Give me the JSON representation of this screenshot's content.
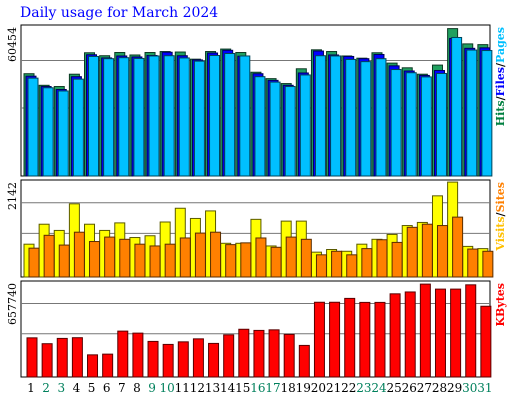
{
  "title": "Daily usage for March 2024",
  "chart_data": [
    {
      "type": "bar",
      "panel": "hits-files-pages",
      "categories": [
        "1",
        "2",
        "3",
        "4",
        "5",
        "6",
        "7",
        "8",
        "9",
        "10",
        "11",
        "12",
        "13",
        "14",
        "15",
        "16",
        "17",
        "18",
        "19",
        "20",
        "21",
        "22",
        "23",
        "24",
        "25",
        "26",
        "27",
        "28",
        "29",
        "30",
        "31"
      ],
      "weekend_days": [
        "2",
        "3",
        "9",
        "10",
        "16",
        "17",
        "23",
        "24",
        "30",
        "31"
      ],
      "ymax": 60454,
      "ymax_label": "60454",
      "legend": [
        {
          "label": "Hits",
          "color": "#008040"
        },
        {
          "label": "/",
          "color": "#000000"
        },
        {
          "label": "Files",
          "color": "#0000ff"
        },
        {
          "label": "/",
          "color": "#000000"
        },
        {
          "label": "Pages",
          "color": "#00c0ff"
        }
      ],
      "series": [
        {
          "name": "Hits",
          "color": "#20a060",
          "values": [
            41500,
            36800,
            36300,
            41300,
            50000,
            48800,
            50100,
            49100,
            50100,
            50500,
            50300,
            47400,
            50500,
            51500,
            50100,
            42100,
            39500,
            37500,
            43500,
            51200,
            50500,
            48700,
            47800,
            50000,
            45800,
            43900,
            41300,
            45000,
            59800,
            53600,
            53300
          ]
        },
        {
          "name": "Files",
          "color": "#0000ff",
          "values": [
            40500,
            36300,
            35100,
            40300,
            49200,
            47900,
            48700,
            48300,
            48900,
            50200,
            48800,
            47100,
            49900,
            51000,
            48600,
            41500,
            38800,
            36800,
            41800,
            50700,
            49100,
            48500,
            47600,
            49300,
            44700,
            42600,
            40800,
            42800,
            55800,
            51800,
            52000
          ]
        },
        {
          "name": "Pages",
          "color": "#00c0ff",
          "values": [
            39700,
            35800,
            34500,
            39300,
            48500,
            47600,
            48000,
            47700,
            48700,
            48800,
            47900,
            46600,
            48900,
            49700,
            48700,
            40300,
            38100,
            36300,
            41000,
            48800,
            48700,
            47300,
            46400,
            47600,
            43200,
            41900,
            40200,
            41600,
            56200,
            51100,
            50900
          ]
        }
      ]
    },
    {
      "type": "bar",
      "panel": "visits-sites",
      "categories": [
        "1",
        "2",
        "3",
        "4",
        "5",
        "6",
        "7",
        "8",
        "9",
        "10",
        "11",
        "12",
        "13",
        "14",
        "15",
        "16",
        "17",
        "18",
        "19",
        "20",
        "21",
        "22",
        "23",
        "24",
        "25",
        "26",
        "27",
        "28",
        "29",
        "30",
        "31"
      ],
      "ymax": 2142,
      "ymax_label": "2142",
      "legend": [
        {
          "label": "Visits",
          "color": "#ffc000"
        },
        {
          "label": "/",
          "color": "#000000"
        },
        {
          "label": "Sites",
          "color": "#ff8000"
        }
      ],
      "series": [
        {
          "name": "Visits",
          "color": "#ffff00",
          "values": [
            740,
            1190,
            1050,
            1650,
            1190,
            1050,
            1220,
            890,
            930,
            1240,
            1550,
            1320,
            1490,
            760,
            760,
            1300,
            700,
            1260,
            1260,
            560,
            620,
            580,
            740,
            850,
            960,
            1160,
            1230,
            1830,
            2140,
            690,
            640
          ]
        },
        {
          "name": "Sites",
          "color": "#ff8000",
          "values": [
            650,
            940,
            720,
            1010,
            800,
            900,
            850,
            740,
            700,
            740,
            880,
            990,
            1010,
            730,
            770,
            880,
            670,
            900,
            850,
            500,
            580,
            500,
            640,
            840,
            780,
            1120,
            1190,
            1160,
            1350,
            630,
            580
          ]
        }
      ]
    },
    {
      "type": "bar",
      "panel": "kbytes",
      "categories": [
        "1",
        "2",
        "3",
        "4",
        "5",
        "6",
        "7",
        "8",
        "9",
        "10",
        "11",
        "12",
        "13",
        "14",
        "15",
        "16",
        "17",
        "18",
        "19",
        "20",
        "21",
        "22",
        "23",
        "24",
        "25",
        "26",
        "27",
        "28",
        "29",
        "30",
        "31"
      ],
      "ymax": 657740,
      "ymax_label": "657740",
      "legend": [
        {
          "label": "KBytes",
          "color": "#ff0000"
        }
      ],
      "series": [
        {
          "name": "KBytes",
          "color": "#ff0000",
          "values": [
            274000,
            233000,
            270000,
            275000,
            155000,
            160000,
            321000,
            307000,
            249000,
            228000,
            246000,
            267000,
            235000,
            295000,
            334000,
            326000,
            330000,
            298000,
            221000,
            523000,
            523000,
            550000,
            522000,
            522000,
            582000,
            595000,
            650000,
            615000,
            615000,
            645000,
            495000
          ]
        }
      ]
    }
  ]
}
